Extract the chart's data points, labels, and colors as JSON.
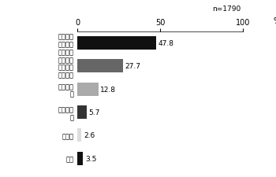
{
  "title": "n=1790",
  "xlabel": "%",
  "categories": [
    "特に関心\nのある内\n容の時だ",
    "積極的に\n参加し地\n域活動に",
    "わからな\nい",
    "参加しな\nい",
    "その他",
    "不明"
  ],
  "values": [
    47.8,
    27.7,
    12.8,
    5.7,
    2.6,
    3.5
  ],
  "bar_colors": [
    "#111111",
    "#666666",
    "#aaaaaa",
    "#333333",
    "#dddddd",
    "#111111"
  ],
  "xlim": [
    0,
    100
  ],
  "xticks": [
    0,
    50,
    100
  ],
  "value_labels": [
    "47.8",
    "27.7",
    "12.8",
    "5.7",
    "2.6",
    "3.5"
  ],
  "background_color": "#ffffff",
  "label_fontsize": 6.0,
  "tick_fontsize": 7,
  "value_fontsize": 6.5
}
